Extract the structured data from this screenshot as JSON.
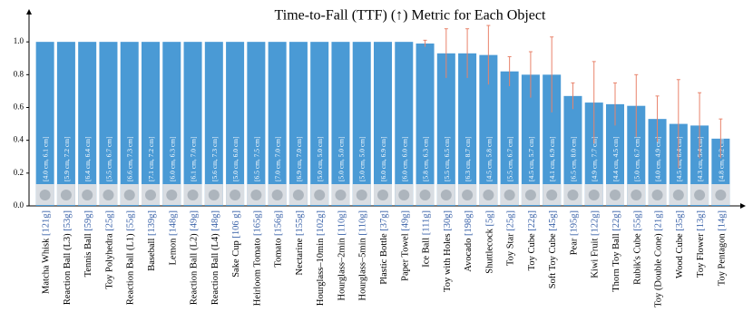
{
  "chart_data": {
    "type": "bar",
    "title": "Time-to-Fall (TTF) (↑) Metric for Each Object",
    "categories": [
      "Matcha Whisk",
      "Reaction Ball (L3)",
      "Tennis Ball",
      "Toy Polyhedra",
      "Reaction Ball (L1)",
      "Baseball",
      "Lemon",
      "Reaction Ball (L2)",
      "Reaction Ball (L4)",
      "Sake Cup",
      "Heirloom Tomato",
      "Tomato",
      "Nectarine",
      "Hourglass–10min",
      "Hourglass–2min",
      "Hourglass–5min",
      "Plastic Bottle",
      "Paper Towel",
      "Ice Ball",
      "Toy with Holes",
      "Avocado",
      "Shuttlecock",
      "Toy Star",
      "Toy Cube",
      "Soft Toy Cube",
      "Pear",
      "Kiwi Fruit",
      "Thorn Toy Ball",
      "Rubik's Cube",
      "Toy (Double Cone)",
      "Wood Cube",
      "Toy Flower",
      "Toy Pentagon"
    ],
    "weights": [
      "[121g]",
      "[53g]",
      "[59g]",
      "[25g]",
      "[55g]",
      "[139g]",
      "[148g]",
      "[49g]",
      "[48g]",
      "[106 g]",
      "[165g]",
      "[156g]",
      "[155g]",
      "[102g]",
      "[110g]",
      "[110g]",
      "[37g]",
      "[49g]",
      "[111g]",
      "[30g]",
      "[198g]",
      "[5g]",
      "[25g]",
      "[22g]",
      "[45g]",
      "[195g]",
      "[122g]",
      "[22g]",
      "[55g]",
      "[21g]",
      "[35g]",
      "[13g]",
      "[14g]"
    ],
    "sizes": [
      "[4.0 cm, 6.1 cm]",
      "[5.9 cm, 7.2 cm]",
      "[6.4 cm, 6.4 cm]",
      "[5.5 cm, 6.7 cm]",
      "[6.6 cm, 7.3 cm]",
      "[7.1 cm, 7.2 cm]",
      "[6.0 cm, 6.3 cm]",
      "[6.1 cm, 7.0 cm]",
      "[5.6 cm, 7.3 cm]",
      "[5.0 cm, 6.0 cm]",
      "[6.5 cm, 7.5 cm]",
      "[7.0 cm, 7.0 cm]",
      "[6.9 cm, 7.0 cm]",
      "[5.0 cm, 5.0 cm]",
      "[5.0 cm, 5.0 cm]",
      "[5.0 cm, 5.0 cm]",
      "[6.0 cm, 6.9 cm]",
      "[6.0 cm, 6.0 cm]",
      "[5.8 cm, 6.3 cm]",
      "[5.5 cm, 6.5 cm]",
      "[6.3 cm, 8.7 cm]",
      "[4.5 cm, 5.8 cm]",
      "[5.5 cm, 6.7 cm]",
      "[4.5 cm, 5.7 cm]",
      "[4.1 cm, 6.9 cm]",
      "[6.5 cm, 8.0 cm]",
      "[4.9 cm, 7.7 cm]",
      "[4.4 cm, 4.5 cm]",
      "[5.0 cm, 6.7 cm]",
      "[4.0 cm, 4.9 cm]",
      "[4.5 cm, 6.4 cm]",
      "[4.3 cm, 5.4 cm]",
      "[4.8 cm, 5.2 cm]"
    ],
    "values": [
      1.0,
      1.0,
      1.0,
      1.0,
      1.0,
      1.0,
      1.0,
      1.0,
      1.0,
      1.0,
      1.0,
      1.0,
      1.0,
      1.0,
      1.0,
      1.0,
      1.0,
      1.0,
      0.99,
      0.93,
      0.93,
      0.92,
      0.82,
      0.8,
      0.8,
      0.67,
      0.63,
      0.62,
      0.61,
      0.53,
      0.5,
      0.49,
      0.41
    ],
    "errors": [
      null,
      null,
      null,
      null,
      null,
      null,
      null,
      null,
      null,
      null,
      null,
      null,
      null,
      null,
      null,
      null,
      null,
      null,
      0.02,
      0.15,
      0.15,
      0.18,
      0.09,
      0.14,
      0.23,
      0.08,
      0.25,
      0.13,
      0.19,
      0.14,
      0.27,
      0.2,
      0.12
    ],
    "color": "#4a9ad5",
    "error_color": "#e8836b",
    "weight_color": "#3a62a8",
    "ylim": [
      0,
      1.2
    ],
    "yticks": [
      {
        "value": 0,
        "label": "0.0"
      },
      {
        "value": 0.2,
        "label": "0.2"
      },
      {
        "value": 0.4,
        "label": "0.4"
      },
      {
        "value": 0.6,
        "label": "0.6"
      },
      {
        "value": 0.8,
        "label": "0.8"
      },
      {
        "value": 1.0,
        "label": "1.0"
      }
    ]
  }
}
